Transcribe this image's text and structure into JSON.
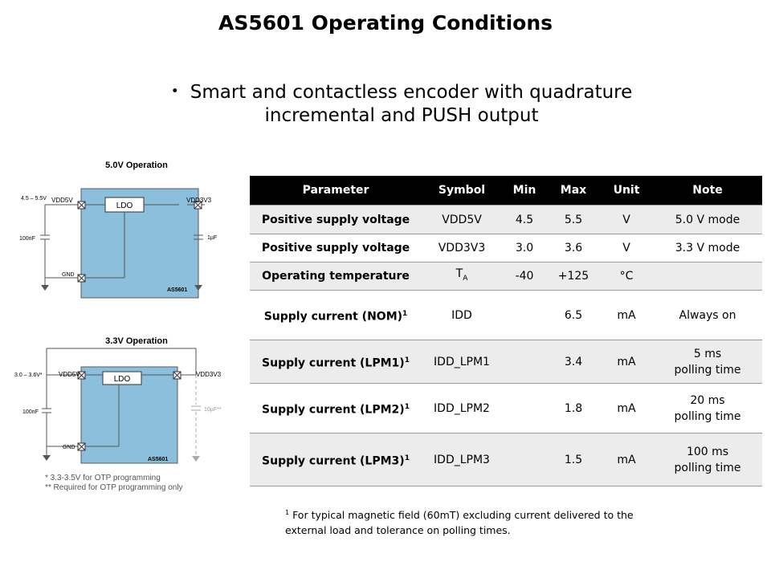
{
  "title": "AS5601 Operating Conditions",
  "bullet": "Smart and contactless encoder with quadrature incremental and PUSH output",
  "circuit_5v": {
    "heading": "5.0V Operation",
    "supply_label": "4.5 – 5.5V",
    "vdd5v": "VDD5V",
    "vdd3v3": "VDD3V3",
    "ldo": "LDO",
    "gnd": "GND",
    "cap_left": "100nF",
    "cap_right": "1µF",
    "chip": "AS5601"
  },
  "circuit_3v3": {
    "heading": "3.3V Operation",
    "supply_label": "3.0 – 3.6V*",
    "vdd5v": "VDD5V",
    "vdd3v3": "VDD3V3",
    "ldo": "LDO",
    "gnd": "GND",
    "cap_left": "100nF",
    "cap_right": "10µF**",
    "chip": "AS5601",
    "note1": "* 3.3-3.5V for OTP programming",
    "note2": "** Required for OTP programming only"
  },
  "table": {
    "headers": {
      "parameter": "Parameter",
      "symbol": "Symbol",
      "min": "Min",
      "max": "Max",
      "unit": "Unit",
      "note": "Note"
    },
    "rows": [
      {
        "parameter": "Positive supply voltage",
        "symbol": "VDD5V",
        "min": "4.5",
        "max": "5.5",
        "unit": "V",
        "note": "5.0 V mode"
      },
      {
        "parameter": "Positive supply voltage",
        "symbol": "VDD3V3",
        "min": "3.0",
        "max": "3.6",
        "unit": "V",
        "note": "3.3 V mode"
      },
      {
        "parameter": "Operating temperature",
        "symbol": "T",
        "symbol_sub": "A",
        "min": "-40",
        "max": "+125",
        "unit": "°C",
        "note": ""
      },
      {
        "parameter": "Supply current (NOM)",
        "sup": "1",
        "symbol": "IDD",
        "min": "",
        "max": "6.5",
        "unit": "mA",
        "note": "Always on"
      },
      {
        "parameter": "Supply current (LPM1)",
        "sup": "1",
        "symbol": "IDD_LPM1",
        "min": "",
        "max": "3.4",
        "unit": "mA",
        "note": "5 ms",
        "note2": "polling time"
      },
      {
        "parameter": "Supply current (LPM2)",
        "sup": "1",
        "symbol": "IDD_LPM2",
        "min": "",
        "max": "1.8",
        "unit": "mA",
        "note": "20 ms",
        "note2": "polling time"
      },
      {
        "parameter": "Supply current (LPM3)",
        "sup": "1",
        "symbol": "IDD_LPM3",
        "min": "",
        "max": "1.5",
        "unit": "mA",
        "note": "100 ms",
        "note2": "polling time"
      }
    ]
  },
  "footnote": {
    "mark": "1",
    "text": " For typical magnetic field (60mT) excluding current delivered to the external load and tolerance on polling times."
  }
}
